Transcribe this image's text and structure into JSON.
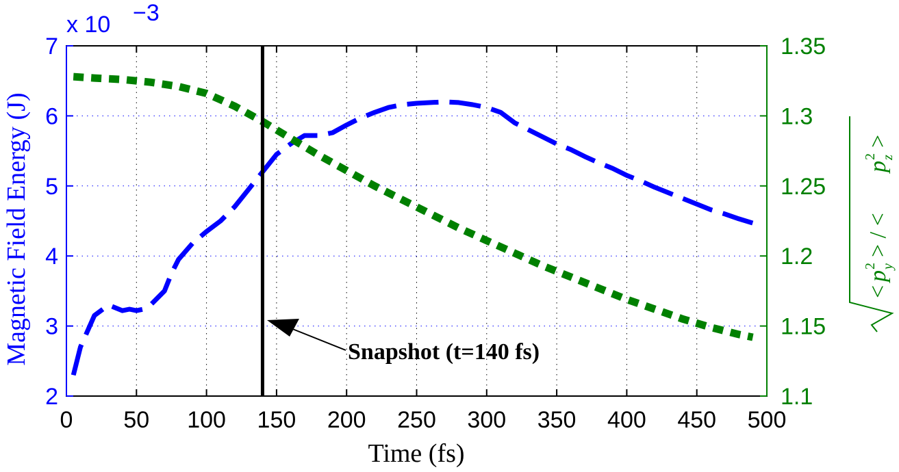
{
  "chart_data": {
    "type": "line",
    "xlabel": "Time (fs)",
    "x_ticks": [
      "0",
      "50",
      "100",
      "150",
      "200",
      "250",
      "300",
      "350",
      "400",
      "450",
      "500"
    ],
    "xlim": [
      0,
      500
    ],
    "grid": true,
    "left_axis": {
      "label": "Magnetic Field Energy (J)",
      "color": "#0000ff",
      "ylim": [
        2,
        7
      ],
      "ticks": [
        "2",
        "3",
        "4",
        "5",
        "6",
        "7"
      ],
      "exponent_label": "x 10",
      "exponent": "−3"
    },
    "right_axis": {
      "label_text": "< p_y² > / < p_z² >",
      "label_left": "<",
      "label_mid": "> / <",
      "label_right": ">",
      "color": "#008000",
      "ylim": [
        1.1,
        1.35
      ],
      "ticks": [
        "1.1",
        "1.15",
        "1.2",
        "1.25",
        "1.3",
        "1.35"
      ]
    },
    "annotation": {
      "text": "Snapshot (t=140 fs)",
      "x": 140
    },
    "series": [
      {
        "axis": "left",
        "color": "#0000ff",
        "style": "dashed",
        "x": [
          5,
          10,
          20,
          30,
          40,
          45,
          50,
          55,
          60,
          65,
          70,
          75,
          80,
          90,
          100,
          110,
          120,
          130,
          140,
          150,
          160,
          170,
          180,
          190,
          200,
          210,
          220,
          230,
          240,
          250,
          260,
          270,
          280,
          290,
          300,
          310,
          320,
          330,
          340,
          350,
          360,
          370,
          380,
          390,
          400,
          410,
          420,
          430,
          440,
          450,
          460,
          470,
          480,
          490
        ],
        "values": [
          2.3,
          2.7,
          3.15,
          3.3,
          3.22,
          3.24,
          3.22,
          3.24,
          3.3,
          3.4,
          3.5,
          3.75,
          3.95,
          4.18,
          4.35,
          4.5,
          4.7,
          4.95,
          5.2,
          5.45,
          5.6,
          5.72,
          5.72,
          5.76,
          5.87,
          5.97,
          6.05,
          6.12,
          6.16,
          6.18,
          6.19,
          6.2,
          6.19,
          6.16,
          6.12,
          6.05,
          5.9,
          5.8,
          5.7,
          5.6,
          5.52,
          5.42,
          5.33,
          5.25,
          5.15,
          5.07,
          4.98,
          4.9,
          4.82,
          4.74,
          4.66,
          4.6,
          4.53,
          4.47
        ]
      },
      {
        "axis": "right",
        "color": "#008000",
        "style": "dotted",
        "x": [
          5,
          20,
          40,
          60,
          80,
          100,
          120,
          140,
          160,
          180,
          200,
          220,
          240,
          260,
          280,
          300,
          320,
          340,
          360,
          380,
          400,
          420,
          440,
          460,
          480,
          490
        ],
        "values": [
          1.328,
          1.327,
          1.326,
          1.324,
          1.321,
          1.316,
          1.307,
          1.296,
          1.284,
          1.272,
          1.261,
          1.25,
          1.24,
          1.23,
          1.22,
          1.211,
          1.202,
          1.193,
          1.185,
          1.177,
          1.169,
          1.162,
          1.155,
          1.149,
          1.144,
          1.142
        ]
      }
    ]
  }
}
